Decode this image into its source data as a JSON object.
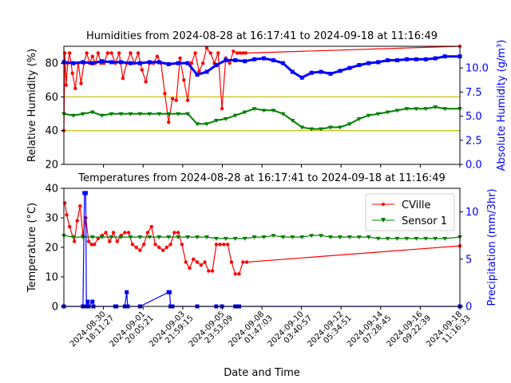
{
  "chart_data": [
    {
      "type": "line",
      "title": "Humidities from 2024-08-28 at 16:17:41 to 2024-09-18 at 11:16:49",
      "ylabel": "Relative Humidity (%)",
      "ylabel_right": "Absolute Humidity (g/m³)",
      "x_range_days": [
        0,
        20.79
      ],
      "ylim": [
        20,
        90
      ],
      "ylim_right": [
        0,
        12.25
      ],
      "yticks": [
        "20",
        "40",
        "60",
        "80"
      ],
      "yticks_right": [
        "0.0",
        "2.5",
        "5.0",
        "7.5",
        "10.0"
      ],
      "hlines": [
        {
          "y": 60,
          "color": "#bfbf00"
        },
        {
          "y": 40,
          "color": "#bfbf00"
        }
      ],
      "series": [
        {
          "axis": "left",
          "color": "#ff0000",
          "marker": "circle",
          "x": [
            0.0,
            0.05,
            0.12,
            0.2,
            0.3,
            0.45,
            0.6,
            0.75,
            0.9,
            1.05,
            1.2,
            1.35,
            1.5,
            1.65,
            1.8,
            1.95,
            2.1,
            2.3,
            2.5,
            2.7,
            2.9,
            3.1,
            3.3,
            3.5,
            3.7,
            3.9,
            4.1,
            4.3,
            4.5,
            4.7,
            4.9,
            5.1,
            5.3,
            5.5,
            5.7,
            5.9,
            6.1,
            6.3,
            6.5,
            6.7,
            6.9,
            7.1,
            7.3,
            7.5,
            7.7,
            7.9,
            8.1,
            8.3,
            8.5,
            8.7,
            8.9,
            9.1,
            9.25,
            9.4,
            9.55,
            20.79
          ],
          "y": [
            40,
            86,
            67,
            80,
            86,
            74,
            65,
            80,
            68,
            80,
            86,
            80,
            84,
            80,
            86,
            80,
            80,
            86,
            86,
            80,
            86,
            71,
            80,
            86,
            80,
            86,
            76,
            69,
            80,
            80,
            84,
            80,
            62,
            45,
            59,
            58,
            83,
            70,
            58,
            80,
            86,
            75,
            80,
            89,
            86,
            80,
            86,
            53,
            83,
            80,
            87,
            86,
            86,
            86,
            86,
            90
          ]
        },
        {
          "axis": "left",
          "color": "#008000",
          "marker": "triangle",
          "x": [
            0.0,
            0.5,
            1.0,
            1.5,
            2.0,
            2.5,
            3.0,
            3.5,
            4.0,
            4.5,
            5.0,
            5.5,
            6.0,
            6.5,
            7.0,
            7.5,
            8.0,
            8.5,
            9.0,
            9.5,
            10.0,
            10.5,
            11.0,
            11.5,
            12.0,
            12.5,
            13.0,
            13.5,
            14.0,
            14.5,
            15.0,
            15.5,
            16.0,
            16.5,
            17.0,
            17.5,
            18.0,
            18.5,
            19.0,
            19.5,
            20.0,
            20.79
          ],
          "y": [
            50,
            49,
            50,
            51,
            49,
            50,
            50,
            50,
            50,
            50,
            50,
            50,
            50,
            50,
            44,
            44,
            46,
            47,
            49,
            51,
            53,
            52,
            52,
            50,
            46,
            42,
            41,
            41,
            42,
            42,
            44,
            47,
            49,
            50,
            51,
            52,
            53,
            53,
            53,
            54,
            53,
            53
          ]
        },
        {
          "axis": "right",
          "color": "#0000ff",
          "marker": "square",
          "x": [
            0.0,
            0.5,
            1.0,
            1.5,
            2.0,
            2.5,
            3.0,
            3.5,
            4.0,
            4.5,
            5.0,
            5.5,
            6.0,
            6.5,
            7.0,
            7.5,
            8.0,
            8.5,
            9.0,
            9.5,
            10.0,
            10.5,
            11.0,
            11.5,
            12.0,
            12.5,
            13.0,
            13.5,
            14.0,
            14.5,
            15.0,
            15.5,
            16.0,
            16.5,
            17.0,
            17.5,
            18.0,
            18.5,
            19.0,
            19.5,
            20.0,
            20.79
          ],
          "y": [
            10.6,
            10.5,
            10.6,
            10.5,
            10.7,
            10.6,
            10.6,
            10.5,
            10.5,
            10.6,
            10.6,
            10.4,
            10.5,
            10.5,
            9.3,
            9.6,
            10.3,
            10.8,
            10.8,
            10.7,
            10.9,
            11.0,
            10.8,
            10.5,
            9.6,
            9.0,
            9.5,
            9.6,
            9.4,
            9.7,
            10.0,
            10.3,
            10.5,
            10.6,
            10.8,
            10.8,
            10.9,
            10.9,
            10.9,
            11.0,
            11.2,
            11.2
          ]
        }
      ]
    },
    {
      "type": "line",
      "title": "Temperatures from 2024-08-28 at 16:17:41 to 2024-09-18 at 11:16:49",
      "xlabel": "Date and Time",
      "ylabel": "Temperature (°C)",
      "ylabel_right": "Precipitation (mm/3hr)",
      "x_range_days": [
        0,
        20.79
      ],
      "ylim": [
        0,
        40
      ],
      "ylim_right": [
        0,
        12.5
      ],
      "yticks": [
        "0",
        "10",
        "20",
        "30",
        "40"
      ],
      "yticks_right": [
        "0",
        "5",
        "10"
      ],
      "x_ticks": [
        {
          "x": 2.08,
          "label": "2024-08-30\n18:11:27"
        },
        {
          "x": 4.16,
          "label": "2024-09-01\n20:05:21"
        },
        {
          "x": 6.24,
          "label": "2024-09-03\n21:59:15"
        },
        {
          "x": 8.32,
          "label": "2024-09-05\n23:53:09"
        },
        {
          "x": 10.4,
          "label": "2024-09-08\n01:47:03"
        },
        {
          "x": 12.47,
          "label": "2024-09-10\n03:40:57"
        },
        {
          "x": 14.55,
          "label": "2024-09-12\n05:34:51"
        },
        {
          "x": 16.63,
          "label": "2024-09-14\n07:28:45"
        },
        {
          "x": 18.71,
          "label": "2024-09-16\n09:22:39"
        },
        {
          "x": 20.79,
          "label": "2024-09-18\n11:16:33"
        }
      ],
      "legend": {
        "placement": "top-right",
        "entries": [
          "CVille",
          "Sensor 1"
        ]
      },
      "series": [
        {
          "name": "CVille",
          "axis": "left",
          "color": "#ff0000",
          "marker": "circle",
          "x": [
            0.05,
            0.15,
            0.3,
            0.55,
            0.7,
            0.85,
            1.0,
            1.15,
            1.3,
            1.45,
            1.6,
            1.8,
            2.0,
            2.2,
            2.4,
            2.6,
            2.8,
            3.0,
            3.2,
            3.4,
            3.6,
            3.8,
            4.0,
            4.2,
            4.4,
            4.6,
            4.8,
            5.0,
            5.2,
            5.4,
            5.6,
            5.8,
            6.0,
            6.2,
            6.4,
            6.6,
            6.8,
            7.0,
            7.2,
            7.4,
            7.6,
            7.8,
            8.0,
            8.2,
            8.4,
            8.6,
            8.8,
            9.0,
            9.2,
            9.4,
            9.6,
            20.79
          ],
          "y": [
            35,
            31,
            27,
            22,
            29,
            34,
            24,
            30,
            22,
            21,
            21,
            23,
            24,
            25,
            22,
            25,
            22,
            24,
            25,
            25,
            21,
            20,
            19,
            21,
            25,
            27,
            21,
            20,
            19,
            20,
            21,
            25,
            25,
            21,
            15,
            13,
            16,
            15,
            14,
            15,
            12,
            12,
            21,
            21,
            21,
            21,
            15,
            11,
            11,
            15,
            15,
            20.5
          ]
        },
        {
          "name": "Sensor 1",
          "axis": "left",
          "color": "#008000",
          "marker": "triangle",
          "x": [
            0.0,
            0.5,
            1.0,
            1.5,
            2.0,
            2.5,
            3.0,
            3.5,
            4.0,
            4.5,
            5.0,
            5.5,
            6.0,
            6.5,
            7.0,
            7.5,
            8.0,
            8.5,
            9.0,
            9.5,
            10.0,
            10.5,
            11.0,
            11.5,
            12.0,
            12.5,
            13.0,
            13.5,
            14.0,
            14.5,
            15.0,
            15.5,
            16.0,
            16.5,
            17.0,
            17.5,
            18.0,
            18.5,
            19.0,
            19.5,
            20.0,
            20.79
          ],
          "y": [
            24,
            23.5,
            23.5,
            23.5,
            23.5,
            23.5,
            23.5,
            23.5,
            23.5,
            23.5,
            23.5,
            23.5,
            23.5,
            23.5,
            23.5,
            23.5,
            23,
            23,
            23,
            23,
            23.5,
            23.5,
            24,
            23.5,
            23.5,
            23.5,
            24,
            24,
            23.5,
            23.5,
            23.5,
            23.5,
            23.5,
            23,
            23,
            23,
            23,
            23,
            23,
            23,
            23,
            23.5
          ]
        },
        {
          "axis": "right",
          "color": "#0000ff",
          "marker": "square",
          "x": [
            0.0,
            1.0,
            1.08,
            1.15,
            1.18,
            1.25,
            1.3,
            1.5,
            1.55,
            2.7,
            2.75,
            3.2,
            3.3,
            3.35,
            4.0,
            5.5,
            5.55,
            5.6,
            5.7,
            7.0,
            8.0,
            8.3,
            9.0,
            9.2,
            20.79
          ],
          "y": [
            0,
            0,
            12,
            12,
            0,
            0.5,
            0,
            0.5,
            0,
            0,
            0,
            0,
            1.5,
            0,
            0,
            1.5,
            1.5,
            0,
            0,
            0,
            0,
            0,
            0,
            0,
            0
          ]
        }
      ]
    }
  ]
}
